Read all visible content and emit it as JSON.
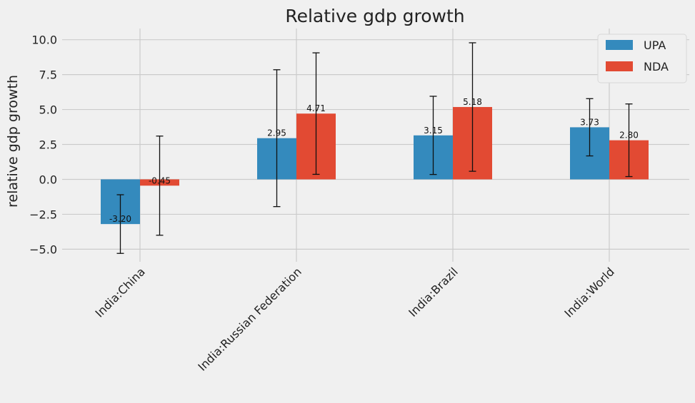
{
  "chart_data": {
    "type": "bar",
    "title": "Relative gdp growth",
    "xlabel": "",
    "ylabel": "relative gdp growth",
    "categories": [
      "India:China",
      "India:Russian Federation",
      "India:Brazil",
      "India:World"
    ],
    "series": [
      {
        "name": "UPA",
        "color": "#348ABD",
        "values": [
          -3.2,
          2.95,
          3.15,
          3.73
        ],
        "errors": [
          2.1,
          4.9,
          2.8,
          2.05
        ],
        "labels": [
          "-3.20",
          "2.95",
          "3.15",
          "3.73"
        ]
      },
      {
        "name": "NDA",
        "color": "#E24A33",
        "values": [
          -0.45,
          4.71,
          5.18,
          2.8
        ],
        "errors": [
          3.55,
          4.35,
          4.6,
          2.6
        ],
        "labels": [
          "-0.45",
          "4.71",
          "5.18",
          "2.80"
        ]
      }
    ],
    "ylim": [
      -5.9,
      10.8
    ],
    "yticks": [
      -5.0,
      -2.5,
      0.0,
      2.5,
      5.0,
      7.5,
      10.0
    ],
    "ytick_labels": [
      "−5.0",
      "−2.5",
      "0.0",
      "2.5",
      "5.0",
      "7.5",
      "10.0"
    ],
    "grid": true,
    "legend_position": "top-right"
  }
}
